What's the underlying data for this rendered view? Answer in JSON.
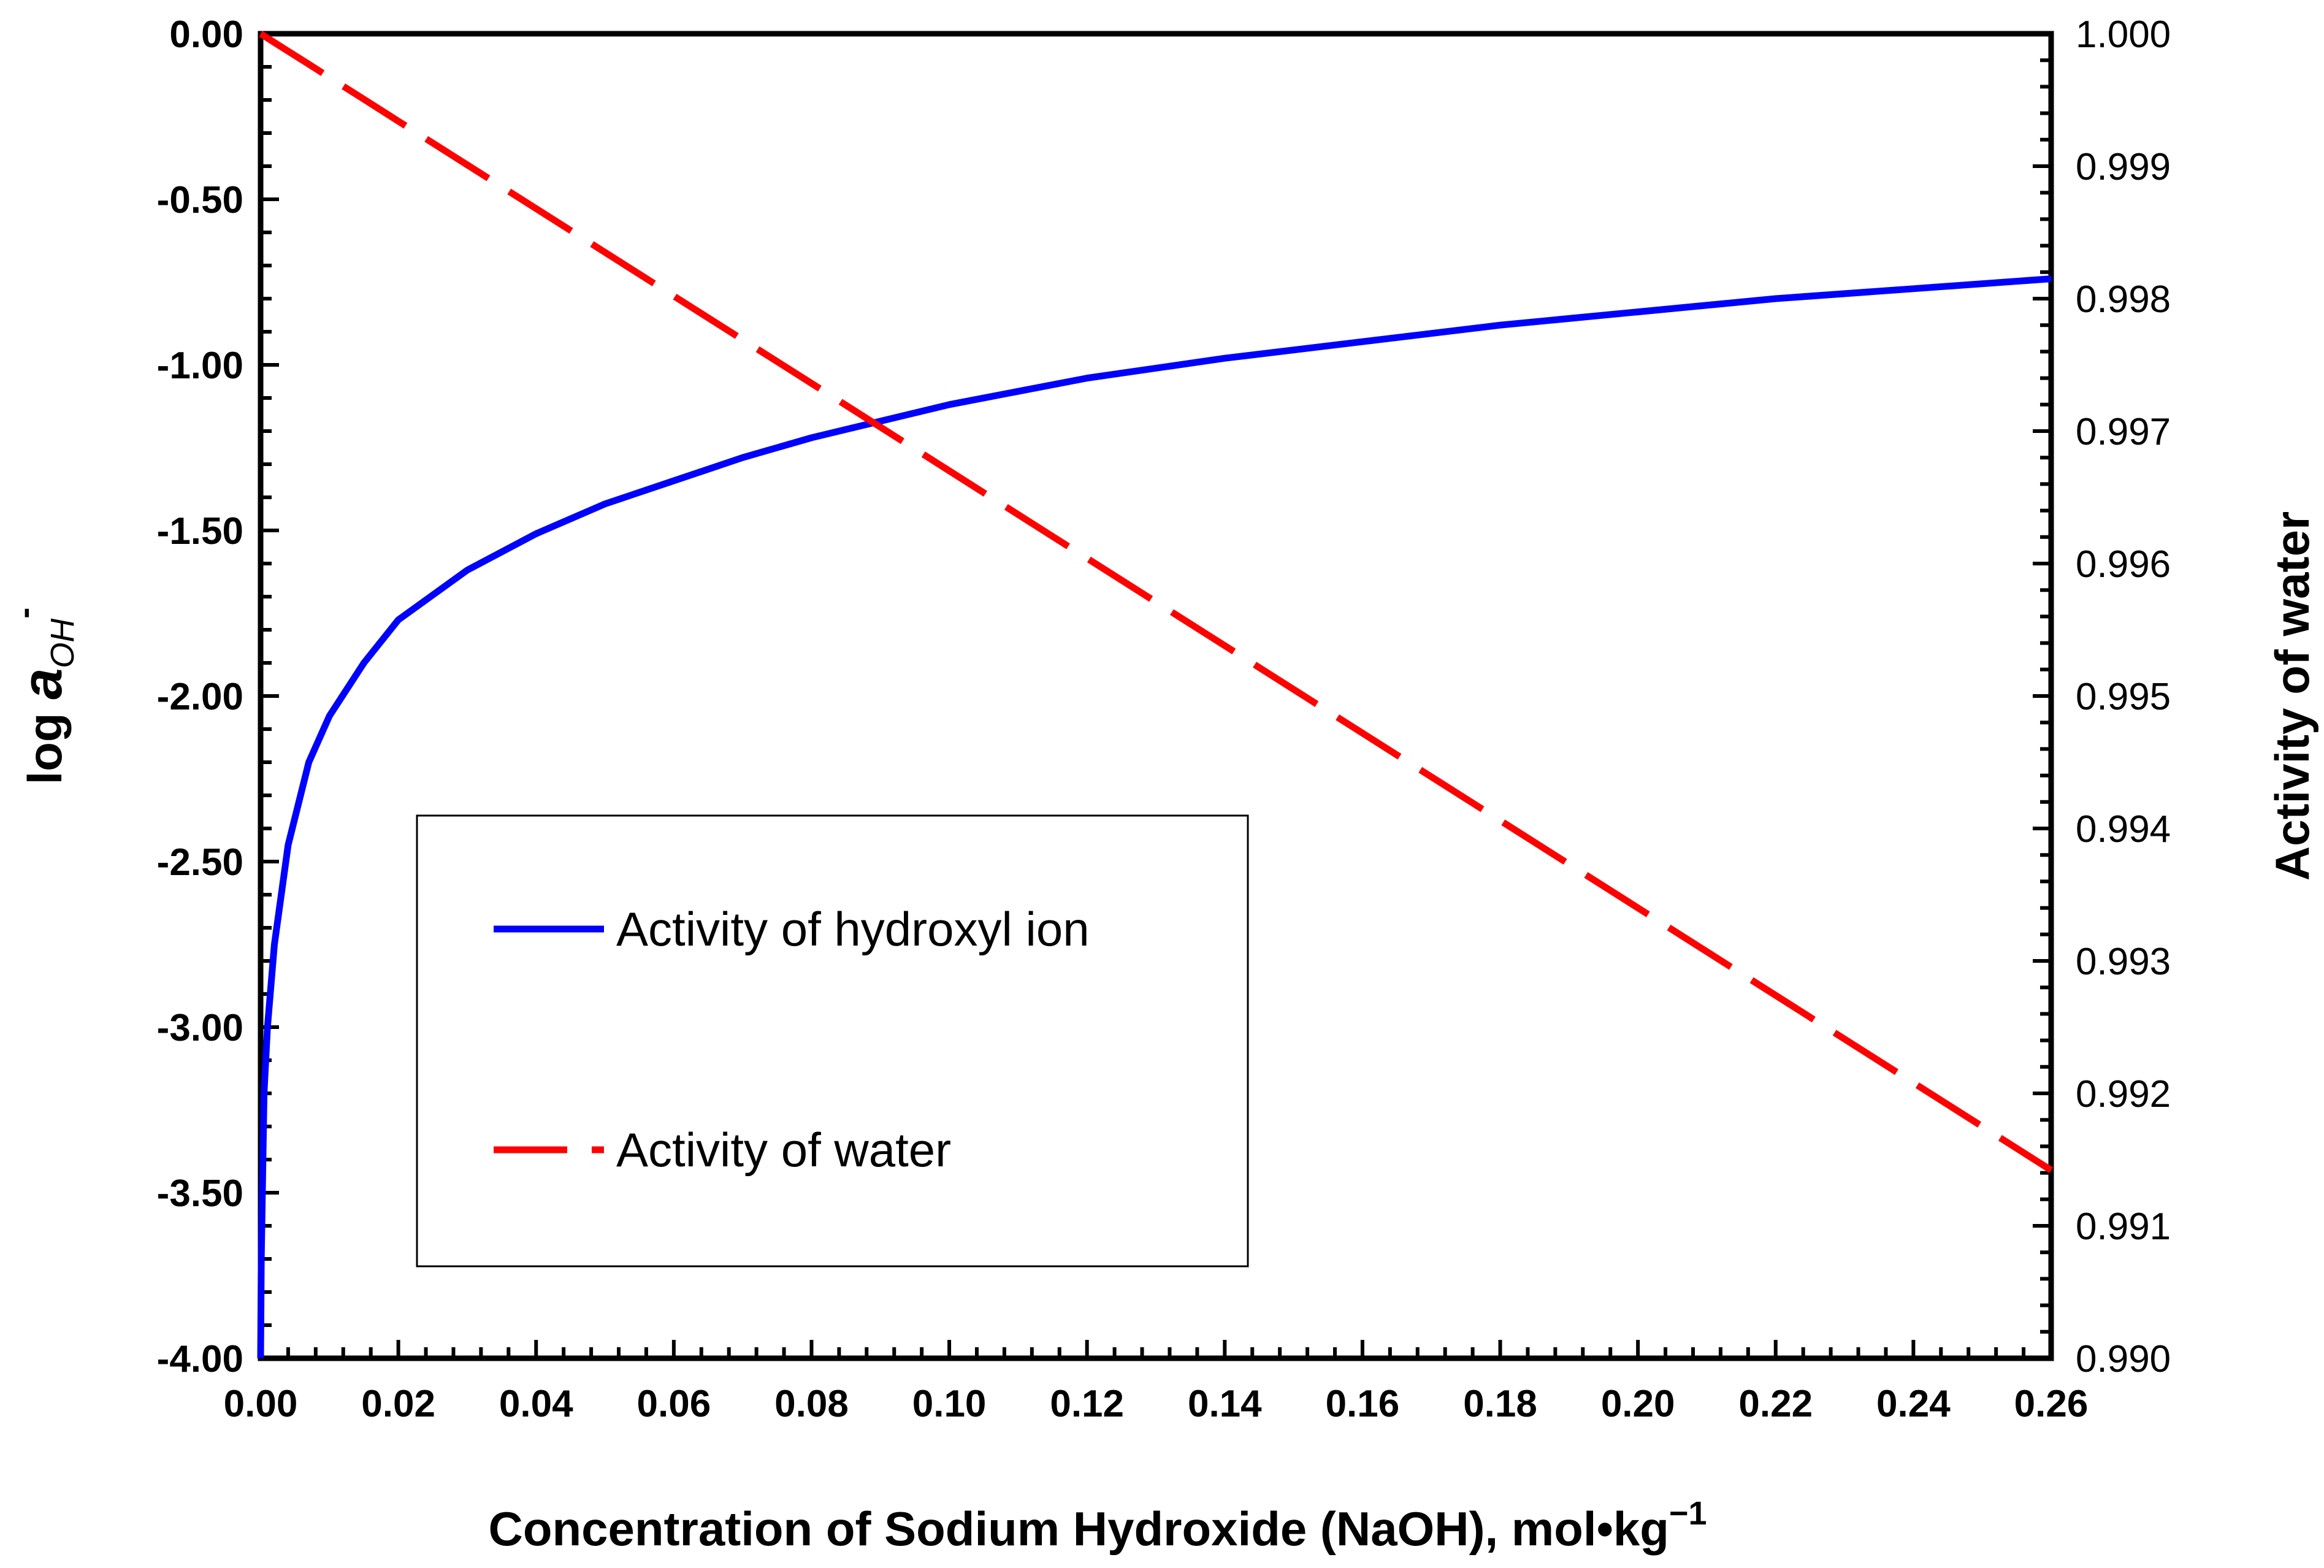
{
  "chart_data": {
    "type": "line",
    "x": [
      0.0,
      0.0001,
      0.0005,
      0.001,
      0.002,
      0.004,
      0.007,
      0.01,
      0.015,
      0.02,
      0.03,
      0.04,
      0.05,
      0.06,
      0.07,
      0.08,
      0.09,
      0.1,
      0.12,
      0.14,
      0.16,
      0.18,
      0.2,
      0.22,
      0.24,
      0.26
    ],
    "series": [
      {
        "name": "Activity of hydroxyl ion",
        "axis": "left",
        "style": "solid",
        "color": "#0000ff",
        "values": [
          -4.0,
          -3.7,
          -3.2,
          -3.0,
          -2.75,
          -2.45,
          -2.2,
          -2.06,
          -1.9,
          -1.77,
          -1.62,
          -1.51,
          -1.42,
          -1.35,
          -1.28,
          -1.22,
          -1.17,
          -1.12,
          -1.04,
          -0.98,
          -0.93,
          -0.88,
          -0.84,
          -0.8,
          -0.77,
          -0.74
        ]
      },
      {
        "name": "Activity of water",
        "axis": "right",
        "style": "dashed",
        "color": "#ff0000",
        "values": [
          1.0,
          0.999997,
          0.999984,
          0.999967,
          0.999934,
          0.999868,
          0.99977,
          0.99967,
          0.999505,
          0.99934,
          0.99901,
          0.99868,
          0.99835,
          0.99802,
          0.99769,
          0.99736,
          0.99703,
          0.9967,
          0.99604,
          0.99538,
          0.99472,
          0.99406,
          0.9934,
          0.99274,
          0.99208,
          0.99142
        ]
      }
    ],
    "x_ticks": [
      "0.00",
      "0.02",
      "0.04",
      "0.06",
      "0.08",
      "0.10",
      "0.12",
      "0.14",
      "0.16",
      "0.18",
      "0.20",
      "0.22",
      "0.24",
      "0.26"
    ],
    "y_left_ticks": [
      "0.00",
      "-0.50",
      "-1.00",
      "-1.50",
      "-2.00",
      "-2.50",
      "-3.00",
      "-3.50",
      "-4.00"
    ],
    "y_right_ticks": [
      "1.000",
      "0.999",
      "0.998",
      "0.997",
      "0.996",
      "0.995",
      "0.994",
      "0.993",
      "0.992",
      "0.991",
      "0.990"
    ],
    "xlim": [
      0,
      0.26
    ],
    "ylim_left": [
      -4.0,
      0.0
    ],
    "ylim_right": [
      0.99,
      1.0
    ],
    "xlabel_main": "Concentration of Sodium Hydroxide (NaOH), mol•kg",
    "xlabel_sup": "−1",
    "ylabel_left_prefix": "log ",
    "ylabel_left_var": "a",
    "ylabel_left_sub": "OH",
    "ylabel_left_sup": "-",
    "ylabel_right": "Activity of water",
    "legend": {
      "position": "lower-left",
      "entries": [
        "Activity of hydroxyl ion",
        "Activity of water"
      ]
    }
  }
}
